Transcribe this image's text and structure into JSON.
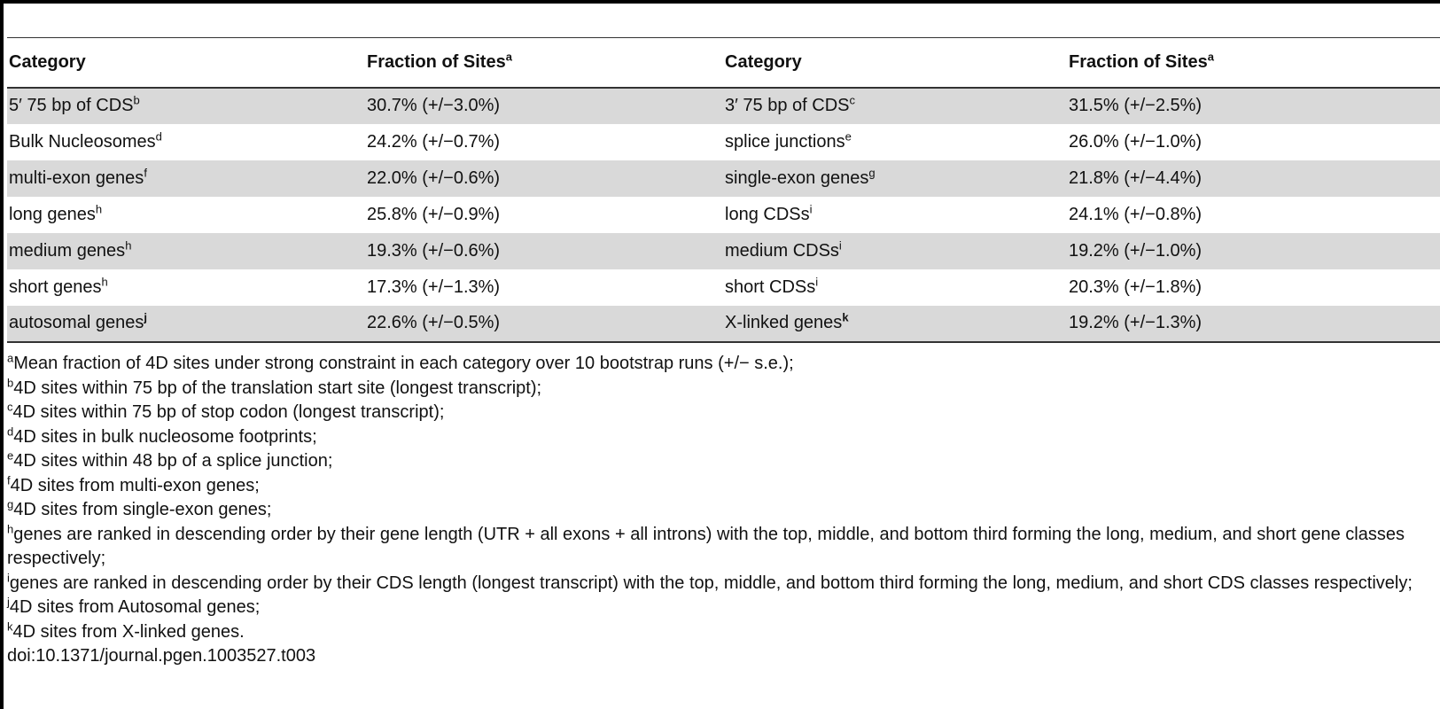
{
  "table": {
    "headers": [
      {
        "text": "Category",
        "sup": ""
      },
      {
        "text": "Fraction of Sites",
        "sup": "a"
      },
      {
        "text": "Category",
        "sup": ""
      },
      {
        "text": "Fraction of Sites",
        "sup": "a"
      }
    ],
    "rows": [
      {
        "cells": [
          {
            "text": "5′ 75 bp of CDS",
            "sup": "b"
          },
          {
            "text": "30.7% (+/−3.0%)",
            "sup": ""
          },
          {
            "text": "3′ 75 bp of CDS",
            "sup": "c"
          },
          {
            "text": "31.5% (+/−2.5%)",
            "sup": ""
          }
        ]
      },
      {
        "cells": [
          {
            "text": "Bulk Nucleosomes",
            "sup": "d"
          },
          {
            "text": "24.2% (+/−0.7%)",
            "sup": ""
          },
          {
            "text": "splice junctions",
            "sup": "e"
          },
          {
            "text": "26.0% (+/−1.0%)",
            "sup": ""
          }
        ]
      },
      {
        "cells": [
          {
            "text": "multi-exon genes",
            "sup": "f"
          },
          {
            "text": "22.0% (+/−0.6%)",
            "sup": ""
          },
          {
            "text": "single-exon genes",
            "sup": "g"
          },
          {
            "text": "21.8% (+/−4.4%)",
            "sup": ""
          }
        ]
      },
      {
        "cells": [
          {
            "text": "long genes",
            "sup": "h"
          },
          {
            "text": "25.8% (+/−0.9%)",
            "sup": ""
          },
          {
            "text": "long CDSs",
            "sup": "i"
          },
          {
            "text": "24.1% (+/−0.8%)",
            "sup": ""
          }
        ]
      },
      {
        "cells": [
          {
            "text": "medium genes",
            "sup": "h"
          },
          {
            "text": "19.3% (+/−0.6%)",
            "sup": ""
          },
          {
            "text": "medium CDSs",
            "sup": "i"
          },
          {
            "text": "19.2% (+/−1.0%)",
            "sup": ""
          }
        ]
      },
      {
        "cells": [
          {
            "text": "short genes",
            "sup": "h"
          },
          {
            "text": "17.3% (+/−1.3%)",
            "sup": ""
          },
          {
            "text": "short CDSs",
            "sup": "i"
          },
          {
            "text": "20.3% (+/−1.8%)",
            "sup": ""
          }
        ]
      },
      {
        "cells": [
          {
            "text": "autosomal genes",
            "sup": "j"
          },
          {
            "text": "22.6% (+/−0.5%)",
            "sup": ""
          },
          {
            "text": "X-linked genes",
            "sup": "k"
          },
          {
            "text": "19.2% (+/−1.3%)",
            "sup": ""
          }
        ]
      }
    ]
  },
  "footnotes": [
    {
      "mark": "a",
      "text": "Mean fraction of 4D sites under strong constraint in each category over 10 bootstrap runs (+/− s.e.);"
    },
    {
      "mark": "b",
      "text": "4D sites within 75 bp of the translation start site (longest transcript);"
    },
    {
      "mark": "c",
      "text": "4D sites within 75 bp of stop codon (longest transcript);"
    },
    {
      "mark": "d",
      "text": "4D sites in bulk nucleosome footprints;"
    },
    {
      "mark": "e",
      "text": "4D sites within 48 bp of a splice junction;"
    },
    {
      "mark": "f",
      "text": "4D sites from multi-exon genes;"
    },
    {
      "mark": "g",
      "text": "4D sites from single-exon genes;"
    },
    {
      "mark": "h",
      "text": "genes are ranked in descending order by their gene length (UTR + all exons + all introns) with the top, middle, and bottom third forming the long, medium, and short gene classes respectively;"
    },
    {
      "mark": "i",
      "text": "genes are ranked in descending order by their CDS length (longest transcript) with the top, middle, and bottom third forming the long, medium, and short CDS classes respectively;"
    },
    {
      "mark": "j",
      "text": "4D sites from Autosomal genes;"
    },
    {
      "mark": "k",
      "text": "4D sites from X-linked genes."
    }
  ],
  "doi": "doi:10.1371/journal.pgen.1003527.t003"
}
